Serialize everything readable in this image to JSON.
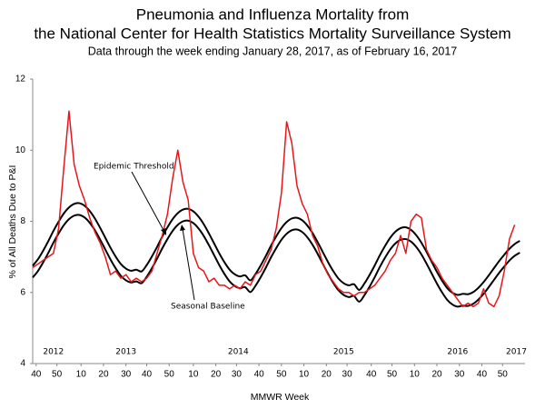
{
  "chart_data": {
    "type": "line",
    "title": "Pneumonia and Influenza Mortality from",
    "title_line2": "the National Center for Health Statistics Mortality Surveillance System",
    "subtitle": "Data through the week ending January 28, 2017, as of February 16, 2017",
    "x_label": "MMWR Week",
    "y_label": "% of All Deaths Due to P&I",
    "xlim": [
      0,
      285
    ],
    "xticks": [
      {
        "value": 2,
        "label": "40"
      },
      {
        "value": 14,
        "label": "50"
      },
      {
        "value": 28,
        "label": "10"
      },
      {
        "value": 41,
        "label": "20"
      },
      {
        "value": 54,
        "label": "30"
      },
      {
        "value": 66,
        "label": "40"
      },
      {
        "value": 79,
        "label": "50"
      },
      {
        "value": 93,
        "label": "10"
      },
      {
        "value": 106,
        "label": "20"
      },
      {
        "value": 118,
        "label": "30"
      },
      {
        "value": 131,
        "label": "40"
      },
      {
        "value": 144,
        "label": "50"
      },
      {
        "value": 157,
        "label": "10"
      },
      {
        "value": 170,
        "label": "20"
      },
      {
        "value": 182,
        "label": "30"
      },
      {
        "value": 196,
        "label": "40"
      },
      {
        "value": 208,
        "label": "50"
      },
      {
        "value": 221,
        "label": "10"
      },
      {
        "value": 234,
        "label": "20"
      },
      {
        "value": 247,
        "label": "30"
      },
      {
        "value": 260,
        "label": "40"
      },
      {
        "value": 272,
        "label": "50"
      }
    ],
    "ylim": [
      4,
      12
    ],
    "yticks": [
      4,
      6,
      8,
      10,
      12
    ],
    "grid": false,
    "year_labels": [
      {
        "label": "2012",
        "x": 12
      },
      {
        "label": "2013",
        "x": 54
      },
      {
        "label": "2014",
        "x": 119
      },
      {
        "label": "2015",
        "x": 180
      },
      {
        "label": "2016",
        "x": 246
      },
      {
        "label": "2017",
        "x": 280
      }
    ],
    "x": [
      0,
      3,
      6,
      9,
      12,
      15,
      18,
      21,
      24,
      27,
      30,
      33,
      36,
      39,
      42,
      45,
      48,
      51,
      54,
      57,
      60,
      63,
      66,
      69,
      72,
      75,
      78,
      81,
      84,
      87,
      90,
      93,
      96,
      99,
      102,
      105,
      108,
      111,
      114,
      117,
      120,
      123,
      126,
      129,
      132,
      135,
      138,
      141,
      144,
      147,
      150,
      153,
      156,
      159,
      162,
      165,
      168,
      171,
      174,
      177,
      180,
      183,
      186,
      189,
      192,
      195,
      198,
      201,
      204,
      207,
      210,
      213,
      216,
      219,
      222,
      225,
      228,
      231,
      234,
      237,
      240,
      243,
      246,
      249,
      252,
      255,
      258,
      261,
      264,
      267,
      270,
      273,
      276,
      279,
      282
    ],
    "series": [
      {
        "name": "Epidemic Threshold",
        "color": "#000000",
        "smooth": true,
        "values": [
          6.75,
          6.93,
          7.17,
          7.44,
          7.73,
          7.99,
          8.22,
          8.39,
          8.49,
          8.51,
          8.44,
          8.29,
          8.08,
          7.82,
          7.54,
          7.26,
          7.01,
          6.8,
          6.67,
          6.61,
          6.64,
          6.59,
          6.77,
          7.01,
          7.28,
          7.57,
          7.83,
          8.06,
          8.23,
          8.33,
          8.35,
          8.28,
          8.13,
          7.92,
          7.66,
          7.38,
          7.1,
          6.85,
          6.64,
          6.51,
          6.45,
          6.48,
          6.34,
          6.52,
          6.76,
          7.03,
          7.32,
          7.58,
          7.81,
          7.98,
          8.08,
          8.1,
          8.03,
          7.88,
          7.67,
          7.41,
          7.13,
          6.85,
          6.6,
          6.39,
          6.26,
          6.2,
          6.23,
          6.07,
          6.25,
          6.49,
          6.76,
          7.05,
          7.31,
          7.54,
          7.71,
          7.81,
          7.83,
          7.76,
          7.61,
          7.4,
          7.14,
          6.86,
          6.58,
          6.33,
          6.12,
          5.99,
          5.93,
          5.96,
          5.95,
          6.01,
          6.13,
          6.29,
          6.48,
          6.68,
          6.88,
          7.06,
          7.23,
          7.36,
          7.45
        ]
      },
      {
        "name": "Seasonal Baseline",
        "color": "#000000",
        "smooth": true,
        "values": [
          6.42,
          6.6,
          6.84,
          7.11,
          7.4,
          7.66,
          7.89,
          8.06,
          8.16,
          8.18,
          8.11,
          7.96,
          7.75,
          7.49,
          7.21,
          6.93,
          6.68,
          6.47,
          6.34,
          6.28,
          6.31,
          6.26,
          6.44,
          6.68,
          6.95,
          7.24,
          7.5,
          7.73,
          7.9,
          8.0,
          8.02,
          7.95,
          7.8,
          7.59,
          7.33,
          7.05,
          6.77,
          6.52,
          6.31,
          6.18,
          6.12,
          6.15,
          6.01,
          6.19,
          6.43,
          6.7,
          6.99,
          7.25,
          7.48,
          7.65,
          7.75,
          7.77,
          7.7,
          7.55,
          7.34,
          7.08,
          6.8,
          6.52,
          6.27,
          6.06,
          5.93,
          5.87,
          5.9,
          5.74,
          5.92,
          6.16,
          6.43,
          6.72,
          6.98,
          7.21,
          7.38,
          7.48,
          7.5,
          7.43,
          7.28,
          7.07,
          6.81,
          6.53,
          6.25,
          6.0,
          5.79,
          5.66,
          5.6,
          5.63,
          5.62,
          5.68,
          5.8,
          5.96,
          6.15,
          6.35,
          6.55,
          6.73,
          6.9,
          7.03,
          7.12
        ]
      },
      {
        "color": "#e8161b",
        "smooth": false,
        "values": [
          6.7,
          6.8,
          6.9,
          7.0,
          7.1,
          7.8,
          9.5,
          11.1,
          9.6,
          9.0,
          8.6,
          8.1,
          7.7,
          7.4,
          7.0,
          6.5,
          6.6,
          6.4,
          6.5,
          6.3,
          6.4,
          6.3,
          6.4,
          6.6,
          7.1,
          7.6,
          8.2,
          9.2,
          10.0,
          9.1,
          8.6,
          7.1,
          6.7,
          6.6,
          6.3,
          6.4,
          6.2,
          6.2,
          6.1,
          6.2,
          6.1,
          6.3,
          6.2,
          6.5,
          6.6,
          6.9,
          7.2,
          7.8,
          8.8,
          10.8,
          10.2,
          9.0,
          8.5,
          8.2,
          7.6,
          7.3,
          6.8,
          6.5,
          6.3,
          6.1,
          6.0,
          6.0,
          5.9,
          6.0,
          6.0,
          6.1,
          6.2,
          6.4,
          6.6,
          6.9,
          7.1,
          7.6,
          7.1,
          8.0,
          8.2,
          8.1,
          7.2,
          6.9,
          6.7,
          6.4,
          6.2,
          6.0,
          5.8,
          5.6,
          5.7,
          5.6,
          5.7,
          6.1,
          5.7,
          5.6,
          5.9,
          6.6,
          7.5,
          7.9,
          null
        ]
      }
    ]
  }
}
